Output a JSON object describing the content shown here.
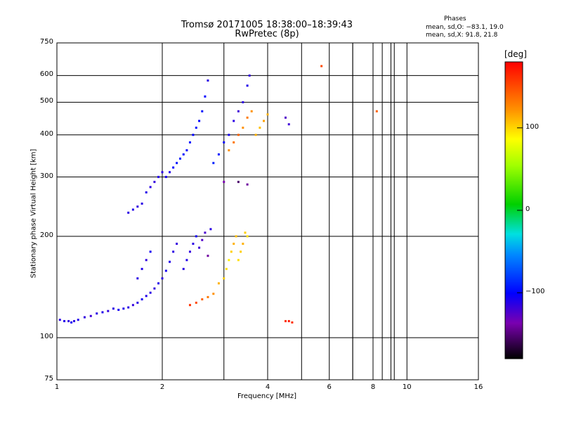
{
  "chart_data": {
    "type": "scatter",
    "title": "Tromsø 20171005 18:38:00–18:39:43",
    "subtitle": "RwPretec (8p)",
    "xlabel": "Frequency [MHz]",
    "ylabel": "Stationary phase Virtual Height [km]",
    "x_scale": "log",
    "y_scale": "log",
    "xlim": [
      1,
      16
    ],
    "ylim": [
      75,
      750
    ],
    "x_ticks": [
      "1",
      "2",
      "4",
      "6",
      "8",
      "10",
      "16"
    ],
    "x_tick_values": [
      1,
      2,
      4,
      6,
      8,
      10,
      16
    ],
    "y_ticks": [
      "75",
      "100",
      "200",
      "300",
      "400",
      "500",
      "600",
      "750"
    ],
    "y_tick_values": [
      75,
      100,
      200,
      300,
      400,
      500,
      600,
      750
    ],
    "grid": true,
    "phases_title": "Phases",
    "stats_o": "mean, sd,O: −83.1, 19.0",
    "stats_x": "mean, sd,X:  91.8, 21.8",
    "colorbar": {
      "unit": "[deg]",
      "ticks": [
        "100",
        "0",
        "−100"
      ],
      "tick_values": [
        100,
        0,
        -100
      ],
      "range": [
        -180,
        180
      ]
    },
    "series": [
      {
        "points": [
          [
            1.02,
            113,
            -110
          ],
          [
            1.05,
            112,
            -108
          ],
          [
            1.08,
            112,
            -112
          ],
          [
            1.1,
            111,
            -105
          ],
          [
            1.12,
            112,
            -110
          ],
          [
            1.15,
            113,
            -108
          ],
          [
            1.2,
            115,
            -112
          ],
          [
            1.25,
            116,
            -115
          ],
          [
            1.3,
            118,
            -110
          ],
          [
            1.35,
            119,
            -108
          ],
          [
            1.4,
            120,
            -112
          ],
          [
            1.45,
            122,
            -110
          ],
          [
            1.5,
            121,
            -105
          ],
          [
            1.55,
            122,
            -108
          ],
          [
            1.6,
            123,
            -110
          ],
          [
            1.65,
            125,
            -112
          ],
          [
            1.7,
            127,
            -110
          ],
          [
            1.75,
            130,
            -105
          ],
          [
            1.8,
            133,
            -108
          ],
          [
            1.85,
            136,
            -110
          ],
          [
            1.9,
            140,
            -112
          ],
          [
            1.95,
            145,
            -108
          ],
          [
            2.0,
            150,
            -110
          ],
          [
            2.05,
            158,
            -105
          ],
          [
            2.1,
            168,
            -108
          ],
          [
            2.15,
            180,
            -110
          ],
          [
            2.2,
            190,
            -112
          ],
          [
            1.7,
            150,
            -110
          ],
          [
            1.75,
            160,
            -108
          ],
          [
            1.8,
            170,
            -112
          ],
          [
            1.85,
            180,
            -105
          ],
          [
            2.3,
            160,
            -110
          ],
          [
            2.35,
            170,
            -108
          ],
          [
            2.4,
            180,
            -112
          ],
          [
            2.45,
            190,
            -110
          ],
          [
            2.5,
            200,
            -105
          ],
          [
            2.55,
            185,
            -115
          ],
          [
            2.6,
            195,
            -120
          ],
          [
            2.65,
            205,
            -118
          ],
          [
            2.7,
            175,
            -135
          ],
          [
            2.75,
            210,
            -110
          ],
          [
            1.6,
            235,
            -110
          ],
          [
            1.65,
            240,
            -108
          ],
          [
            1.7,
            245,
            -112
          ],
          [
            1.75,
            250,
            -110
          ],
          [
            1.8,
            270,
            -108
          ],
          [
            1.85,
            280,
            -110
          ],
          [
            1.9,
            290,
            -112
          ],
          [
            1.95,
            300,
            -108
          ],
          [
            2.0,
            310,
            -110
          ],
          [
            2.05,
            300,
            -105
          ],
          [
            2.1,
            310,
            -108
          ],
          [
            2.15,
            320,
            -100
          ],
          [
            2.2,
            330,
            -95
          ],
          [
            2.25,
            340,
            -90
          ],
          [
            2.3,
            350,
            -95
          ],
          [
            2.35,
            360,
            -100
          ],
          [
            2.4,
            380,
            -95
          ],
          [
            2.45,
            400,
            -100
          ],
          [
            2.5,
            420,
            -95
          ],
          [
            2.55,
            440,
            -100
          ],
          [
            2.6,
            470,
            -95
          ],
          [
            2.65,
            520,
            -100
          ],
          [
            2.7,
            580,
            -110
          ],
          [
            2.8,
            330,
            -90
          ],
          [
            2.9,
            350,
            -95
          ],
          [
            3.0,
            380,
            -100
          ],
          [
            3.1,
            400,
            -105
          ],
          [
            3.2,
            440,
            -110
          ],
          [
            3.3,
            470,
            -115
          ],
          [
            3.4,
            500,
            -110
          ],
          [
            3.5,
            560,
            -108
          ],
          [
            3.55,
            600,
            -112
          ],
          [
            3.0,
            290,
            -130
          ],
          [
            3.3,
            290,
            -150
          ],
          [
            3.5,
            285,
            -135
          ]
        ]
      },
      {
        "points": [
          [
            2.4,
            125,
            160
          ],
          [
            2.5,
            127,
            150
          ],
          [
            2.6,
            130,
            140
          ],
          [
            2.7,
            132,
            130
          ],
          [
            2.8,
            135,
            120
          ],
          [
            2.9,
            145,
            110
          ],
          [
            3.0,
            150,
            100
          ],
          [
            3.05,
            160,
            95
          ],
          [
            3.1,
            170,
            90
          ],
          [
            3.15,
            180,
            100
          ],
          [
            3.2,
            190,
            110
          ],
          [
            3.25,
            200,
            105
          ],
          [
            3.3,
            170,
            95
          ],
          [
            3.35,
            180,
            100
          ],
          [
            3.4,
            190,
            110
          ],
          [
            3.45,
            205,
            100
          ],
          [
            3.5,
            200,
            95
          ],
          [
            3.1,
            360,
            120
          ],
          [
            3.2,
            380,
            130
          ],
          [
            3.3,
            400,
            140
          ],
          [
            3.4,
            420,
            120
          ],
          [
            3.5,
            450,
            130
          ],
          [
            3.6,
            470,
            120
          ],
          [
            3.7,
            400,
            110
          ],
          [
            3.8,
            420,
            105
          ],
          [
            3.9,
            440,
            115
          ],
          [
            4.0,
            460,
            110
          ],
          [
            4.5,
            112,
            160
          ],
          [
            4.6,
            112,
            170
          ],
          [
            4.7,
            111,
            160
          ],
          [
            5.7,
            640,
            150
          ],
          [
            8.2,
            470,
            140
          ],
          [
            4.5,
            450,
            -120
          ],
          [
            4.6,
            430,
            -115
          ]
        ]
      }
    ]
  }
}
